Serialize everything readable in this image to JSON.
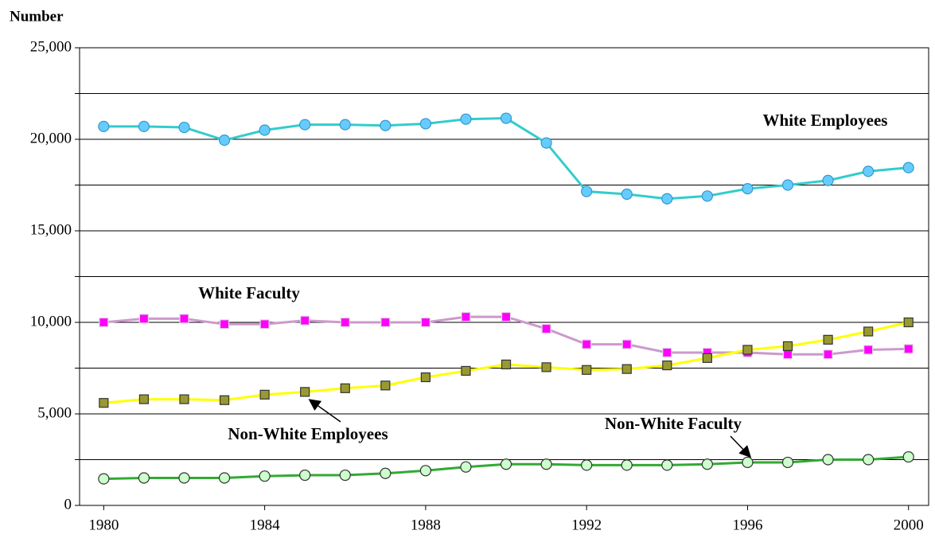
{
  "chart_data": {
    "type": "line",
    "y_label": "Number",
    "x": [
      1980,
      1981,
      1982,
      1983,
      1984,
      1985,
      1986,
      1987,
      1988,
      1989,
      1990,
      1991,
      1992,
      1993,
      1994,
      1995,
      1996,
      1997,
      1998,
      1999,
      2000
    ],
    "xlim": [
      1979.4,
      2000.5
    ],
    "xticks": [
      1980,
      1984,
      1988,
      1992,
      1996,
      2000
    ],
    "ylim": [
      0,
      25000
    ],
    "yticks": [
      0,
      {
        "value": 5000,
        "label": "5,000"
      },
      {
        "value": 10000,
        "label": "10,000"
      },
      {
        "value": 15000,
        "label": "15,000"
      },
      {
        "value": 20000,
        "label": "20,000"
      },
      {
        "value": 25000,
        "label": "25,000"
      }
    ],
    "minor_yticks": [
      2500,
      7500,
      12500,
      17500,
      22500
    ],
    "grid": true,
    "series": [
      {
        "name": "White Employees",
        "color": "#33cccc",
        "marker": "circle",
        "marker_color": "#66ccff",
        "values": [
          20700,
          20700,
          20650,
          19950,
          20500,
          20800,
          20800,
          20750,
          20850,
          21100,
          21150,
          19800,
          17150,
          17000,
          16750,
          16900,
          17300,
          17500,
          17750,
          18250,
          18450
        ]
      },
      {
        "name": "White Faculty",
        "color": "#cc99cc",
        "marker": "square",
        "marker_color": "#ff00ff",
        "values": [
          10000,
          10200,
          10200,
          9900,
          9900,
          10100,
          10000,
          10000,
          10000,
          10300,
          10300,
          9650,
          8800,
          8800,
          8350,
          8350,
          8350,
          8250,
          8250,
          8500,
          8550
        ]
      },
      {
        "name": "Non-White Employees",
        "color": "#ffff00",
        "marker": "square",
        "marker_color": "#999933",
        "values": [
          5600,
          5800,
          5800,
          5750,
          6050,
          6200,
          6400,
          6550,
          7000,
          7350,
          7700,
          7550,
          7400,
          7450,
          7650,
          8050,
          8500,
          8700,
          9050,
          9500,
          10000
        ]
      },
      {
        "name": "Non-White Faculty",
        "color": "#33aa33",
        "marker": "circle",
        "marker_color": "#ccffcc",
        "values": [
          1450,
          1500,
          1500,
          1500,
          1600,
          1650,
          1650,
          1750,
          1900,
          2100,
          2250,
          2250,
          2200,
          2200,
          2200,
          2250,
          2350,
          2350,
          2500,
          2500,
          2650
        ]
      }
    ]
  }
}
